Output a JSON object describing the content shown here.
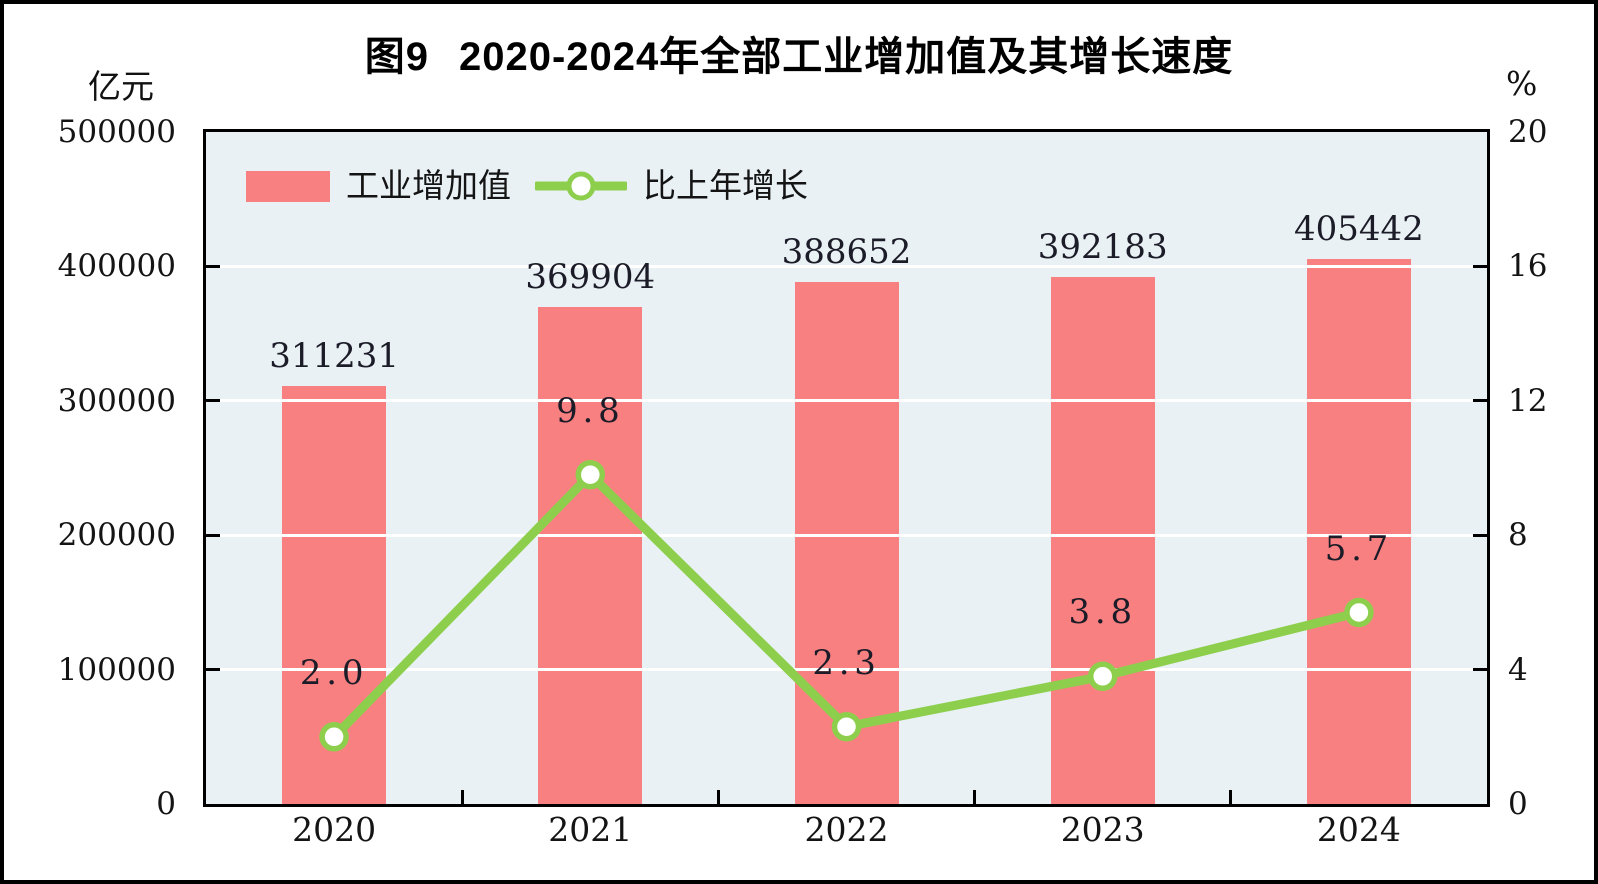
{
  "chart_data": {
    "type": "bar+line",
    "title": "图9  2020-2024年全部工业增加值及其增长速度",
    "title_figure": "图9",
    "title_main": "2020-2024年全部工业增加值及其增长速度",
    "categories": [
      "2020",
      "2021",
      "2022",
      "2023",
      "2024"
    ],
    "series": [
      {
        "name": "工业增加值",
        "type": "bar",
        "axis": "left",
        "unit": "亿元",
        "color": "#F98080",
        "values": [
          311231,
          369904,
          388652,
          392183,
          405442
        ],
        "labels": [
          "311231",
          "369904",
          "388652",
          "392183",
          "405442"
        ]
      },
      {
        "name": "比上年增长",
        "type": "line",
        "axis": "right",
        "unit": "%",
        "color": "#8DCF4D",
        "marker": "circle-white-fill-green-stroke",
        "values": [
          2.0,
          9.8,
          2.3,
          3.8,
          5.7
        ],
        "labels": [
          "2.0",
          "9.8",
          "2.3",
          "3.8",
          "5.7"
        ]
      }
    ],
    "left_axis": {
      "unit_label": "亿元",
      "min": 0,
      "max": 500000,
      "step": 100000,
      "tick_labels": [
        "500000",
        "400000",
        "300000",
        "200000",
        "100000",
        "0"
      ]
    },
    "right_axis": {
      "unit_label": "%",
      "min": 0,
      "max": 20,
      "step": 4,
      "tick_labels": [
        "20",
        "16",
        "12",
        "8",
        "4",
        "0"
      ]
    },
    "legend": {
      "position": "top-left-inside",
      "items": [
        "工业增加值",
        "比上年增长"
      ]
    },
    "grid": {
      "horizontal": true,
      "vertical": false,
      "color": "#ffffff"
    },
    "plot_background": "#E9F1F5",
    "axis_frame_color": "#000000"
  }
}
